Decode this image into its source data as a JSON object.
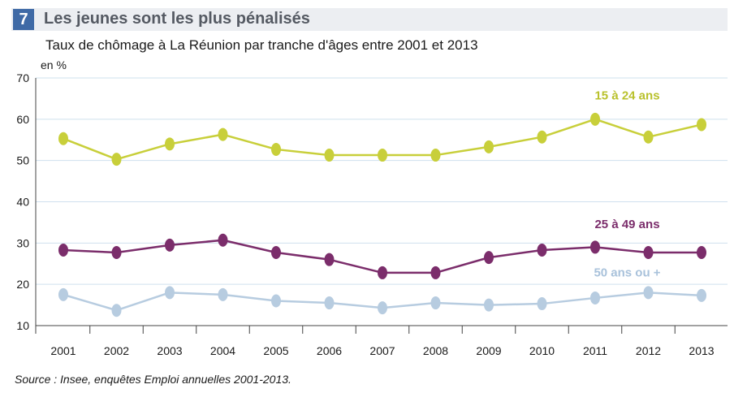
{
  "figure": {
    "number": "7",
    "title": "Les jeunes sont les plus pénalisés",
    "subtitle": "Taux de chômage à La Réunion par tranche d'âges entre 2001 et 2013",
    "unit": "en %",
    "source": "Source : Insee, enquêtes Emploi annuelles 2001-2013."
  },
  "colors": {
    "number_box": "#3f6aa6",
    "title_text": "#555a63",
    "header_band": "#eceef2",
    "grid": "#cfe0ee",
    "axis": "#444444"
  },
  "chart_data": {
    "type": "line",
    "title": "",
    "xlabel": "",
    "ylabel": "en %",
    "categories": [
      "2001",
      "2002",
      "2003",
      "2004",
      "2005",
      "2006",
      "2007",
      "2008",
      "2009",
      "2010",
      "2011",
      "2012",
      "2013"
    ],
    "ylim": [
      10,
      70
    ],
    "yticks": [
      10,
      20,
      30,
      40,
      50,
      60,
      70
    ],
    "grid": true,
    "legend": "inline labels near series",
    "series": [
      {
        "name": "15 à 24 ans",
        "color": "#c8cf3a",
        "label_color": "#b9c12c",
        "values": [
          55.3,
          50.3,
          54.0,
          56.3,
          52.7,
          51.3,
          51.3,
          51.3,
          53.3,
          55.7,
          60.0,
          55.7,
          58.7
        ]
      },
      {
        "name": "25 à 49 ans",
        "color": "#7b2d6b",
        "label_color": "#7b2d6b",
        "values": [
          28.3,
          27.7,
          29.5,
          30.7,
          27.7,
          26.0,
          22.8,
          22.8,
          26.5,
          28.3,
          29.0,
          27.7,
          27.7
        ]
      },
      {
        "name": "50 ans ou +",
        "color": "#b7cce0",
        "label_color": "#a9c2db",
        "values": [
          17.5,
          13.7,
          18.0,
          17.5,
          16.0,
          15.5,
          14.3,
          15.5,
          15.0,
          15.3,
          16.7,
          18.0,
          17.3
        ]
      }
    ]
  }
}
